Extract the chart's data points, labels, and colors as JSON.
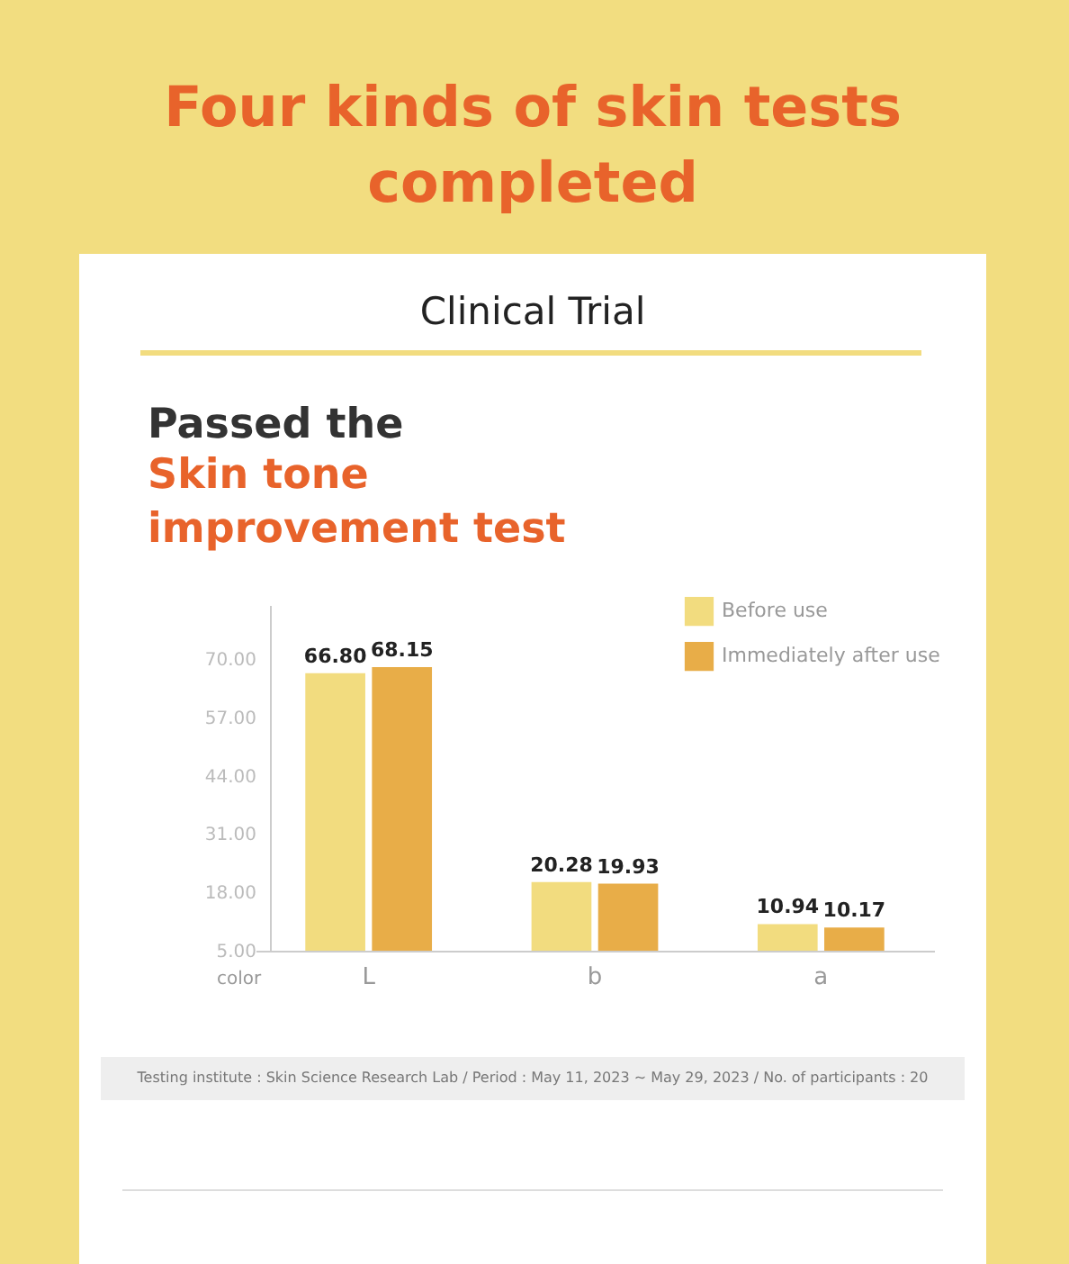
{
  "chart_data": {
    "type": "bar",
    "title": "Four kinds of skin tests\ncompleted",
    "subtitle": "Clinical Trial",
    "annotations": [
      "Passed the",
      "Skin tone\nimprovement test",
      "Testing institute : Skin Science Research Lab / Period : May 11, 2023 ~ May 29, 2023 / No. of participants : 20"
    ],
    "xlabel": "color",
    "categories": [
      "L",
      "b",
      "a"
    ],
    "series": [
      {
        "name": "Before use",
        "color": "#f2dc7f",
        "values": [
          66.8,
          20.28,
          10.94
        ],
        "value_labels": [
          "66.80",
          "20.28",
          "10.94"
        ]
      },
      {
        "name": "Immediately after use",
        "color": "#e8ad48",
        "values": [
          68.15,
          19.93,
          10.17
        ],
        "value_labels": [
          "68.15",
          "19.93",
          "10.17"
        ]
      }
    ],
    "ylim": [
      5,
      82
    ],
    "yticks": [
      {
        "value": 5,
        "label": "5.00"
      },
      {
        "value": 18,
        "label": "18.00"
      },
      {
        "value": 31,
        "label": "31.00"
      },
      {
        "value": 44,
        "label": "44.00"
      },
      {
        "value": 57,
        "label": "57.00"
      },
      {
        "value": 70,
        "label": "70.00"
      }
    ],
    "grid": false,
    "legend": "top right"
  }
}
